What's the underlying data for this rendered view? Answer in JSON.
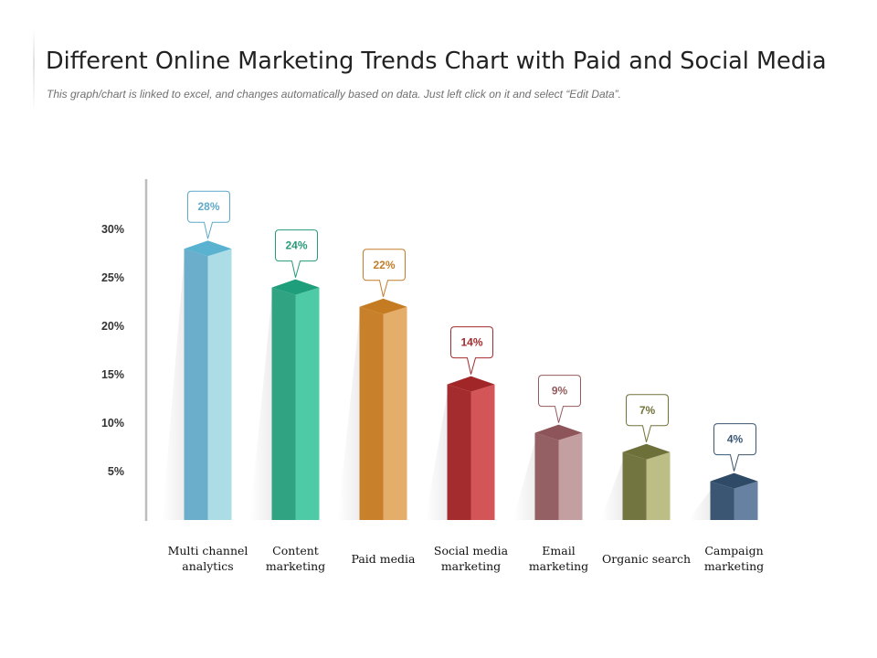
{
  "header": {
    "title": "Different Online Marketing Trends Chart with Paid and Social Media",
    "subtitle": "This graph/chart is linked to excel, and changes automatically  based on data.  Just left click on it and select “Edit Data”."
  },
  "chart_data": {
    "type": "bar",
    "style": "3d-columns-with-callout-labels",
    "ylim": [
      0,
      35
    ],
    "yticks": [
      5,
      10,
      15,
      20,
      25,
      30
    ],
    "ytick_labels": [
      "5%",
      "10%",
      "15%",
      "20%",
      "25%",
      "30%"
    ],
    "grid": false,
    "legend": "none",
    "categories": [
      [
        "Multi channel",
        "analytics"
      ],
      [
        "Content",
        "marketing"
      ],
      [
        "Paid media"
      ],
      [
        "Social media",
        "marketing"
      ],
      [
        "Email",
        "marketing"
      ],
      [
        "Organic search"
      ],
      [
        "Campaign",
        "marketing"
      ]
    ],
    "values": [
      28,
      24,
      22,
      14,
      9,
      7,
      4
    ],
    "data_labels": [
      "28%",
      "24%",
      "22%",
      "14%",
      "9%",
      "7%",
      "4%"
    ],
    "colors": [
      {
        "dark": "#6aaecb",
        "light": "#acdce6",
        "top": "#58b2d0",
        "text": "#5fa9c8"
      },
      {
        "dark": "#30a383",
        "light": "#4fcaa7",
        "top": "#1f9e7c",
        "text": "#269a79"
      },
      {
        "dark": "#c9802a",
        "light": "#e4ad6a",
        "top": "#c57b22",
        "text": "#c07d2a"
      },
      {
        "dark": "#a52c2e",
        "light": "#d45557",
        "top": "#a12628",
        "text": "#a32a2c"
      },
      {
        "dark": "#946064",
        "light": "#c49fa2",
        "top": "#8d5559",
        "text": "#945a5e"
      },
      {
        "dark": "#737540",
        "light": "#bdbd86",
        "top": "#6e703a",
        "text": "#707239"
      },
      {
        "dark": "#3a5672",
        "light": "#6681a2",
        "top": "#2f4a66",
        "text": "#3a5672"
      }
    ],
    "axis_color": "#bdbdbd"
  }
}
